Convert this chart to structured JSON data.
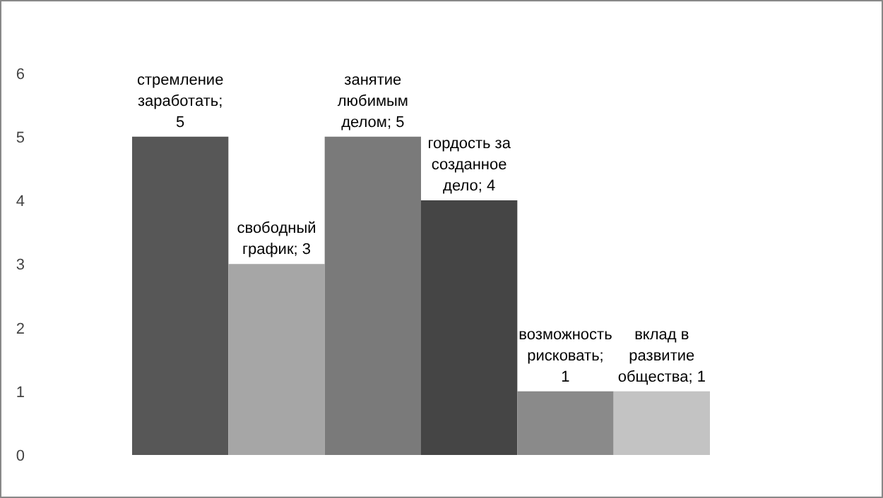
{
  "chart_data": {
    "type": "bar",
    "categories": [
      null,
      null,
      null,
      null,
      null,
      null
    ],
    "values": [
      5,
      3,
      5,
      4,
      1,
      1
    ],
    "value_labels": [
      "стремление заработать; 5",
      "свободный график; 3",
      "занятие любимым делом; 5",
      "гордость за созданное дело; 4",
      "возможность рисковать; 1",
      "вклад в развитие общества; 1"
    ],
    "colors": [
      "#575757",
      "#a6a6a6",
      "#7a7a7a",
      "#454545",
      "#8a8a8a",
      "#c3c3c3"
    ],
    "ylim": [
      0,
      6
    ],
    "yticks": [
      0,
      1,
      2,
      3,
      4,
      5,
      6
    ],
    "grid": false,
    "tick_labels": "y"
  }
}
